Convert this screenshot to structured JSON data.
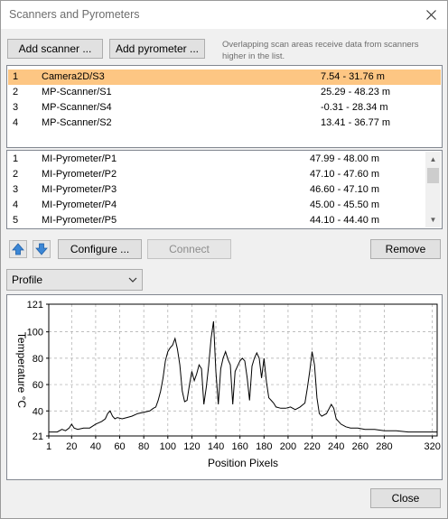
{
  "window": {
    "title": "Scanners and Pyrometers"
  },
  "toolbar": {
    "add_scanner": "Add scanner ...",
    "add_pyrometer": "Add pyrometer ...",
    "hint": "Overlapping scan areas receive data from scanners higher in the list."
  },
  "scanners": [
    {
      "index": "1",
      "name": "Camera2D/S3",
      "range": "7.54 - 31.76 m",
      "selected": true
    },
    {
      "index": "2",
      "name": "MP-Scanner/S1",
      "range": "25.29 - 48.23 m"
    },
    {
      "index": "3",
      "name": "MP-Scanner/S4",
      "range": "-0.31 - 28.34 m"
    },
    {
      "index": "4",
      "name": "MP-Scanner/S2",
      "range": "13.41 - 36.77 m"
    }
  ],
  "pyrometers": [
    {
      "index": "1",
      "name": "MI-Pyrometer/P1",
      "range": "47.99 - 48.00 m"
    },
    {
      "index": "2",
      "name": "MI-Pyrometer/P2",
      "range": "47.10 - 47.60 m"
    },
    {
      "index": "3",
      "name": "MI-Pyrometer/P3",
      "range": "46.60 - 47.10 m"
    },
    {
      "index": "4",
      "name": "MI-Pyrometer/P4",
      "range": "45.00 - 45.50 m"
    },
    {
      "index": "5",
      "name": "MI-Pyrometer/P5",
      "range": "44.10 - 44.40 m"
    }
  ],
  "actions": {
    "up_icon": "arrow-up-icon",
    "down_icon": "arrow-down-icon",
    "configure": "Configure ...",
    "connect": "Connect",
    "remove": "Remove"
  },
  "view_select": {
    "value": "Profile"
  },
  "footer": {
    "close": "Close"
  },
  "colors": {
    "selected_row": "#fdc683",
    "arrow_blue": "#3c87d6"
  },
  "chart_data": {
    "type": "line",
    "xlabel": "Position Pixels",
    "ylabel": "Temperature °C",
    "xlim": [
      1,
      324
    ],
    "ylim": [
      21,
      121
    ],
    "xticks": [
      1,
      20,
      40,
      60,
      80,
      100,
      120,
      140,
      160,
      180,
      200,
      220,
      240,
      260,
      280,
      320
    ],
    "yticks": [
      21,
      40,
      60,
      80,
      100,
      121
    ],
    "grid": true,
    "series": [
      {
        "x": [
          1,
          8,
          12,
          15,
          18,
          20,
          22,
          25,
          30,
          35,
          40,
          45,
          48,
          50,
          52,
          54,
          56,
          58,
          62,
          66,
          70,
          75,
          80,
          85,
          88,
          90,
          92,
          94,
          96,
          98,
          100,
          102,
          104,
          106,
          108,
          110,
          112,
          114,
          116,
          118,
          120,
          122,
          124,
          126,
          128,
          130,
          132,
          134,
          136,
          138,
          140,
          142,
          144,
          146,
          148,
          150,
          152,
          154,
          156,
          158,
          160,
          162,
          164,
          166,
          168,
          170,
          172,
          174,
          176,
          178,
          180,
          182,
          184,
          186,
          188,
          190,
          194,
          198,
          202,
          206,
          210,
          214,
          216,
          218,
          220,
          222,
          224,
          226,
          228,
          232,
          236,
          238,
          240,
          244,
          248,
          252,
          258,
          264,
          272,
          280,
          290,
          300,
          310,
          320,
          324
        ],
        "y": [
          24,
          24,
          26,
          25,
          27,
          30,
          27,
          26,
          27,
          27,
          30,
          32,
          34,
          38,
          40,
          36,
          34,
          35,
          34,
          35,
          36,
          38,
          39,
          40,
          42,
          43,
          48,
          55,
          65,
          78,
          85,
          88,
          90,
          95,
          87,
          75,
          55,
          47,
          48,
          60,
          70,
          63,
          68,
          75,
          72,
          45,
          58,
          75,
          95,
          108,
          70,
          45,
          72,
          80,
          85,
          79,
          75,
          45,
          70,
          74,
          78,
          80,
          78,
          65,
          48,
          74,
          80,
          84,
          80,
          65,
          80,
          62,
          50,
          48,
          46,
          43,
          42,
          42,
          43,
          41,
          43,
          46,
          57,
          70,
          85,
          75,
          50,
          38,
          36,
          38,
          45,
          42,
          34,
          30,
          28,
          27,
          27,
          26,
          26,
          25,
          25,
          24,
          24,
          24,
          24
        ]
      }
    ]
  }
}
